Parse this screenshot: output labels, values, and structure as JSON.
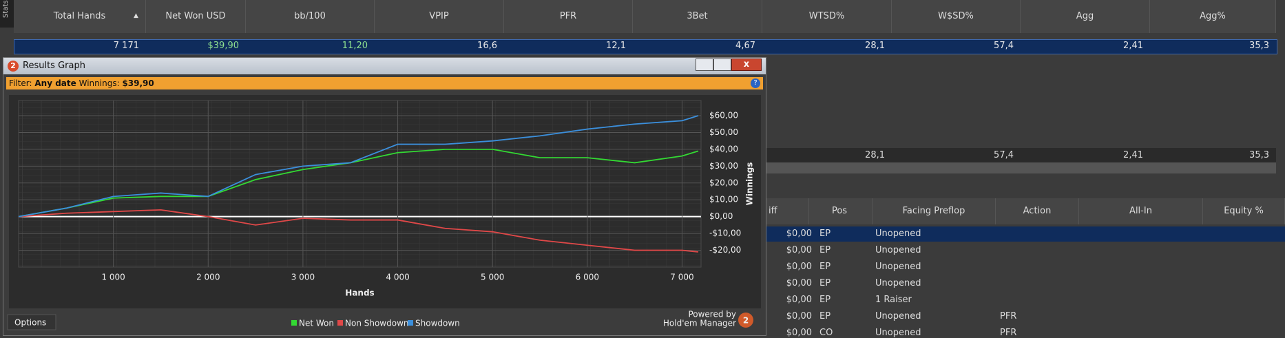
{
  "sidebar_tab": "Stats",
  "stats_table": {
    "columns": [
      "Total Hands",
      "Net Won USD",
      "bb/100",
      "VPIP",
      "PFR",
      "3Bet",
      "WTSD%",
      "W$SD%",
      "Agg",
      "Agg%"
    ],
    "rows": [
      [
        "7 171",
        "$39,90",
        "11,20",
        "16,6",
        "12,1",
        "4,67",
        "28,1",
        "57,4",
        "2,41",
        "35,3"
      ]
    ],
    "summary_row": [
      "28,1",
      "57,4",
      "2,41",
      "35,3"
    ]
  },
  "window": {
    "title": "Results Graph",
    "logo": "2",
    "filter": {
      "label": "Filter:",
      "date": "Any date",
      "winnings_label": "Winnings:",
      "winnings": "$39,90"
    },
    "options": "Options",
    "powered_by": "Powered by",
    "brand": "Hold'em Manager"
  },
  "chart_data": {
    "type": "line",
    "x_label": "Hands",
    "y_label": "Winnings",
    "x": [
      0,
      500,
      1000,
      1500,
      2000,
      2500,
      3000,
      3500,
      4000,
      4500,
      5000,
      5500,
      6000,
      6500,
      7000,
      7171
    ],
    "series": [
      {
        "name": "Net Won",
        "color": "#33d933",
        "values": [
          0,
          5,
          11,
          12,
          12,
          22,
          28,
          32,
          38,
          40,
          40,
          35,
          35,
          32,
          36,
          39
        ]
      },
      {
        "name": "Non Showdown",
        "color": "#e04848",
        "values": [
          0,
          2,
          3,
          4,
          0,
          -5,
          -1,
          -2,
          -2,
          -7,
          -9,
          -14,
          -17,
          -20,
          -20,
          -21
        ]
      },
      {
        "name": "Showdown",
        "color": "#3b8fdc",
        "values": [
          0,
          5,
          12,
          14,
          12,
          25,
          30,
          32,
          43,
          43,
          45,
          48,
          52,
          55,
          57,
          60
        ]
      }
    ],
    "xlim": [
      0,
      7200
    ],
    "ylim": [
      -30,
      69
    ],
    "xticks": [
      {
        "value": 1000,
        "label": "1 000"
      },
      {
        "value": 2000,
        "label": "2 000"
      },
      {
        "value": 3000,
        "label": "3 000"
      },
      {
        "value": 4000,
        "label": "4 000"
      },
      {
        "value": 5000,
        "label": "5 000"
      },
      {
        "value": 6000,
        "label": "6 000"
      },
      {
        "value": 7000,
        "label": "7 000"
      }
    ],
    "yticks": [
      {
        "value": 60,
        "label": "$60,00"
      },
      {
        "value": 50,
        "label": "$50,00"
      },
      {
        "value": 40,
        "label": "$40,00"
      },
      {
        "value": 30,
        "label": "$30,00"
      },
      {
        "value": 20,
        "label": "$20,00"
      },
      {
        "value": 10,
        "label": "$10,00"
      },
      {
        "value": 0,
        "label": "$0,00"
      },
      {
        "value": -10,
        "label": "-$10,00"
      },
      {
        "value": -20,
        "label": "-$20,00"
      }
    ],
    "grid": true
  },
  "hands_table": {
    "columns": [
      "iff",
      "Pos",
      "Facing Preflop",
      "Action",
      "All-In",
      "Equity %"
    ],
    "rows": [
      {
        "amount": "$0,00",
        "pos": "EP",
        "facing": "Unopened"
      },
      {
        "amount": "$0,00",
        "pos": "EP",
        "facing": "Unopened"
      },
      {
        "amount": "$0,00",
        "pos": "EP",
        "facing": "Unopened"
      },
      {
        "amount": "$0,00",
        "pos": "EP",
        "facing": "Unopened"
      },
      {
        "amount": "$0,00",
        "pos": "EP",
        "facing": "1 Raiser"
      },
      {
        "amount": "$0,00",
        "pos": "EP",
        "facing": "Unopened",
        "action": "PFR"
      },
      {
        "amount": "$0,00",
        "pos": "CO",
        "facing": "Unopened",
        "action": "PFR"
      }
    ]
  }
}
